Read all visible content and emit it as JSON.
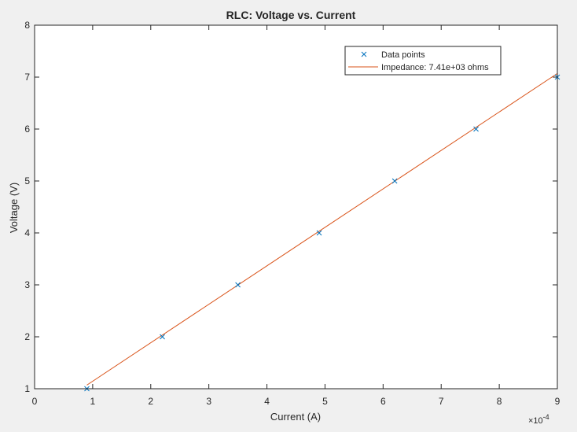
{
  "chart_data": {
    "type": "scatter",
    "title": "RLC: Voltage vs. Current",
    "xlabel": "Current (A)",
    "ylabel": "Voltage (V)",
    "x_exponent_label": "×10",
    "x_exponent_power": "-4",
    "x_scale_factor": 0.0001,
    "xlim": [
      0,
      9
    ],
    "ylim": [
      1,
      8
    ],
    "x_ticks": [
      0,
      1,
      2,
      3,
      4,
      5,
      6,
      7,
      8,
      9
    ],
    "y_ticks": [
      1,
      2,
      3,
      4,
      5,
      6,
      7,
      8
    ],
    "grid": false,
    "legend_position": "top-right",
    "series": [
      {
        "name": "Data points",
        "kind": "marker",
        "marker": "x",
        "color": "#0072bd",
        "x": [
          0.9,
          2.2,
          3.5,
          4.9,
          6.2,
          7.6,
          9.0
        ],
        "y": [
          1,
          2,
          3,
          4,
          5,
          6,
          7
        ]
      },
      {
        "name": "Impedance: 7.41e+03 ohms",
        "kind": "line",
        "color": "#d95319",
        "x": [
          0.9,
          9.0
        ],
        "y": [
          1.07,
          7.07
        ]
      }
    ]
  }
}
